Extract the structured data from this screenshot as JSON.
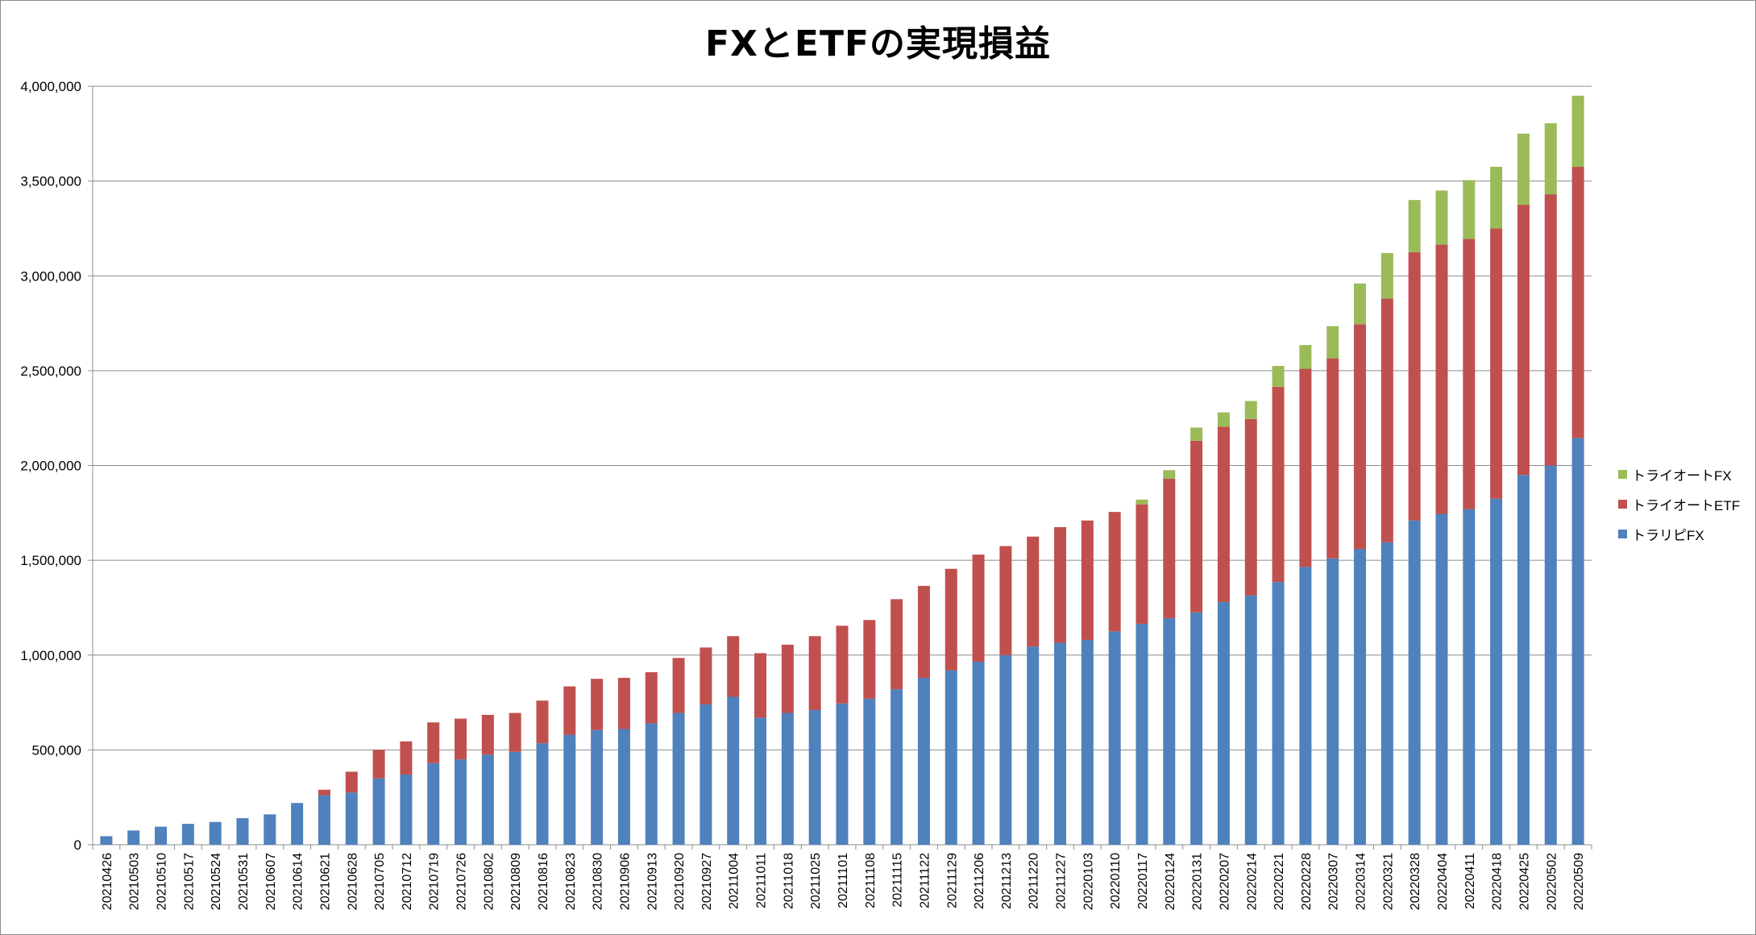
{
  "chart_data": {
    "type": "bar",
    "stacked": true,
    "title": "FXとETFの実現損益",
    "xlabel": "",
    "ylabel": "",
    "ylim": [
      0,
      4000000
    ],
    "yticks": [
      0,
      500000,
      1000000,
      1500000,
      2000000,
      2500000,
      3000000,
      3500000,
      4000000
    ],
    "ytick_labels": [
      "0",
      "500,000",
      "1,000,000",
      "1,500,000",
      "2,000,000",
      "2,500,000",
      "3,000,000",
      "3,500,000",
      "4,000,000"
    ],
    "grid": true,
    "legend_position": "right",
    "categories": [
      "20210426",
      "20210503",
      "20210510",
      "20210517",
      "20210524",
      "20210531",
      "20210607",
      "20210614",
      "20210621",
      "20210628",
      "20210705",
      "20210712",
      "20210719",
      "20210726",
      "20210802",
      "20210809",
      "20210816",
      "20210823",
      "20210830",
      "20210906",
      "20210913",
      "20210920",
      "20210927",
      "20211004",
      "20211011",
      "20211018",
      "20211025",
      "20211101",
      "20211108",
      "20211115",
      "20211122",
      "20211129",
      "20211206",
      "20211213",
      "20211220",
      "20211227",
      "20220103",
      "20220110",
      "20220117",
      "20220124",
      "20220131",
      "20220207",
      "20220214",
      "20220221",
      "20220228",
      "20220307",
      "20220314",
      "20220321",
      "20220328",
      "20220404",
      "20220411",
      "20220418",
      "20220425",
      "20220502",
      "20220509"
    ],
    "series": [
      {
        "name": "トラリピFX",
        "color": "#4f81bd",
        "values": [
          45000,
          75000,
          95000,
          110000,
          120000,
          140000,
          160000,
          220000,
          260000,
          275000,
          350000,
          370000,
          430000,
          450000,
          475000,
          490000,
          535000,
          580000,
          605000,
          610000,
          640000,
          695000,
          740000,
          780000,
          670000,
          695000,
          710000,
          745000,
          770000,
          820000,
          880000,
          920000,
          965000,
          1000000,
          1045000,
          1065000,
          1080000,
          1125000,
          1165000,
          1195000,
          1225000,
          1280000,
          1315000,
          1385000,
          1465000,
          1510000,
          1560000,
          1595000,
          1710000,
          1745000,
          1770000,
          1825000,
          1950000,
          2000000,
          2145000
        ]
      },
      {
        "name": "トライオートETF",
        "color": "#c0504d",
        "values": [
          0,
          0,
          0,
          0,
          0,
          0,
          0,
          0,
          30000,
          110000,
          150000,
          175000,
          215000,
          215000,
          210000,
          205000,
          225000,
          255000,
          270000,
          270000,
          270000,
          290000,
          300000,
          320000,
          340000,
          360000,
          390000,
          410000,
          415000,
          475000,
          485000,
          535000,
          565000,
          575000,
          580000,
          610000,
          630000,
          630000,
          630000,
          735000,
          905000,
          925000,
          930000,
          1030000,
          1045000,
          1055000,
          1185000,
          1285000,
          1415000,
          1420000,
          1425000,
          1425000,
          1425000,
          1430000,
          1430000
        ]
      },
      {
        "name": "トライオートFX",
        "color": "#9bbb59",
        "values": [
          0,
          0,
          0,
          0,
          0,
          0,
          0,
          0,
          0,
          0,
          0,
          0,
          0,
          0,
          0,
          0,
          0,
          0,
          0,
          0,
          0,
          0,
          0,
          0,
          0,
          0,
          0,
          0,
          0,
          0,
          0,
          0,
          0,
          0,
          0,
          0,
          0,
          0,
          25000,
          45000,
          70000,
          75000,
          95000,
          110000,
          125000,
          170000,
          215000,
          240000,
          275000,
          285000,
          310000,
          325000,
          375000,
          375000,
          375000
        ]
      }
    ]
  }
}
